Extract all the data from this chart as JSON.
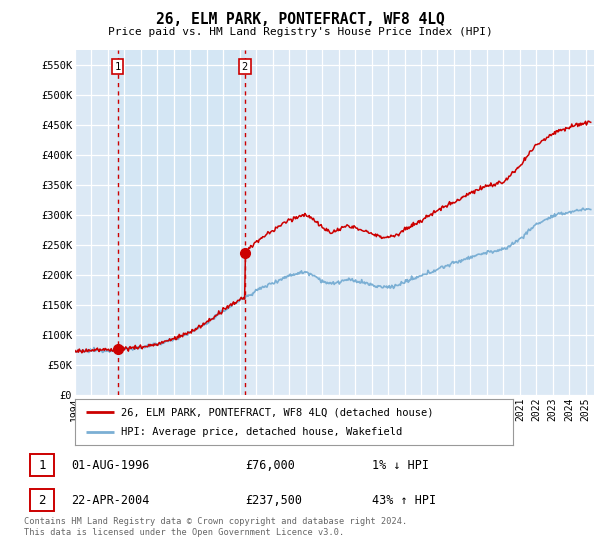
{
  "title": "26, ELM PARK, PONTEFRACT, WF8 4LQ",
  "subtitle": "Price paid vs. HM Land Registry's House Price Index (HPI)",
  "ylabel_ticks": [
    "£0",
    "£50K",
    "£100K",
    "£150K",
    "£200K",
    "£250K",
    "£300K",
    "£350K",
    "£400K",
    "£450K",
    "£500K",
    "£550K"
  ],
  "ytick_vals": [
    0,
    50000,
    100000,
    150000,
    200000,
    250000,
    300000,
    350000,
    400000,
    450000,
    500000,
    550000
  ],
  "xmin_year": 1994.0,
  "xmax_year": 2025.5,
  "xtick_years": [
    1994,
    1995,
    1996,
    1997,
    1998,
    1999,
    2000,
    2001,
    2002,
    2003,
    2004,
    2005,
    2006,
    2007,
    2008,
    2009,
    2010,
    2011,
    2012,
    2013,
    2014,
    2015,
    2016,
    2017,
    2018,
    2019,
    2020,
    2021,
    2022,
    2023,
    2024,
    2025
  ],
  "sale1_year": 1996.583,
  "sale1_price": 76000,
  "sale2_year": 2004.31,
  "sale2_price": 237500,
  "hpi_color": "#7bafd4",
  "price_color": "#cc0000",
  "grid_color": "#c8d8e8",
  "bg_color": "#dce9f5",
  "bg_highlight": "#cfe0f0",
  "legend_label1": "26, ELM PARK, PONTEFRACT, WF8 4LQ (detached house)",
  "legend_label2": "HPI: Average price, detached house, Wakefield",
  "sale1_date": "01-AUG-1996",
  "sale1_amount": "£76,000",
  "sale1_hpi": "1% ↓ HPI",
  "sale2_date": "22-APR-2004",
  "sale2_amount": "£237,500",
  "sale2_hpi": "43% ↑ HPI",
  "footer": "Contains HM Land Registry data © Crown copyright and database right 2024.\nThis data is licensed under the Open Government Licence v3.0."
}
